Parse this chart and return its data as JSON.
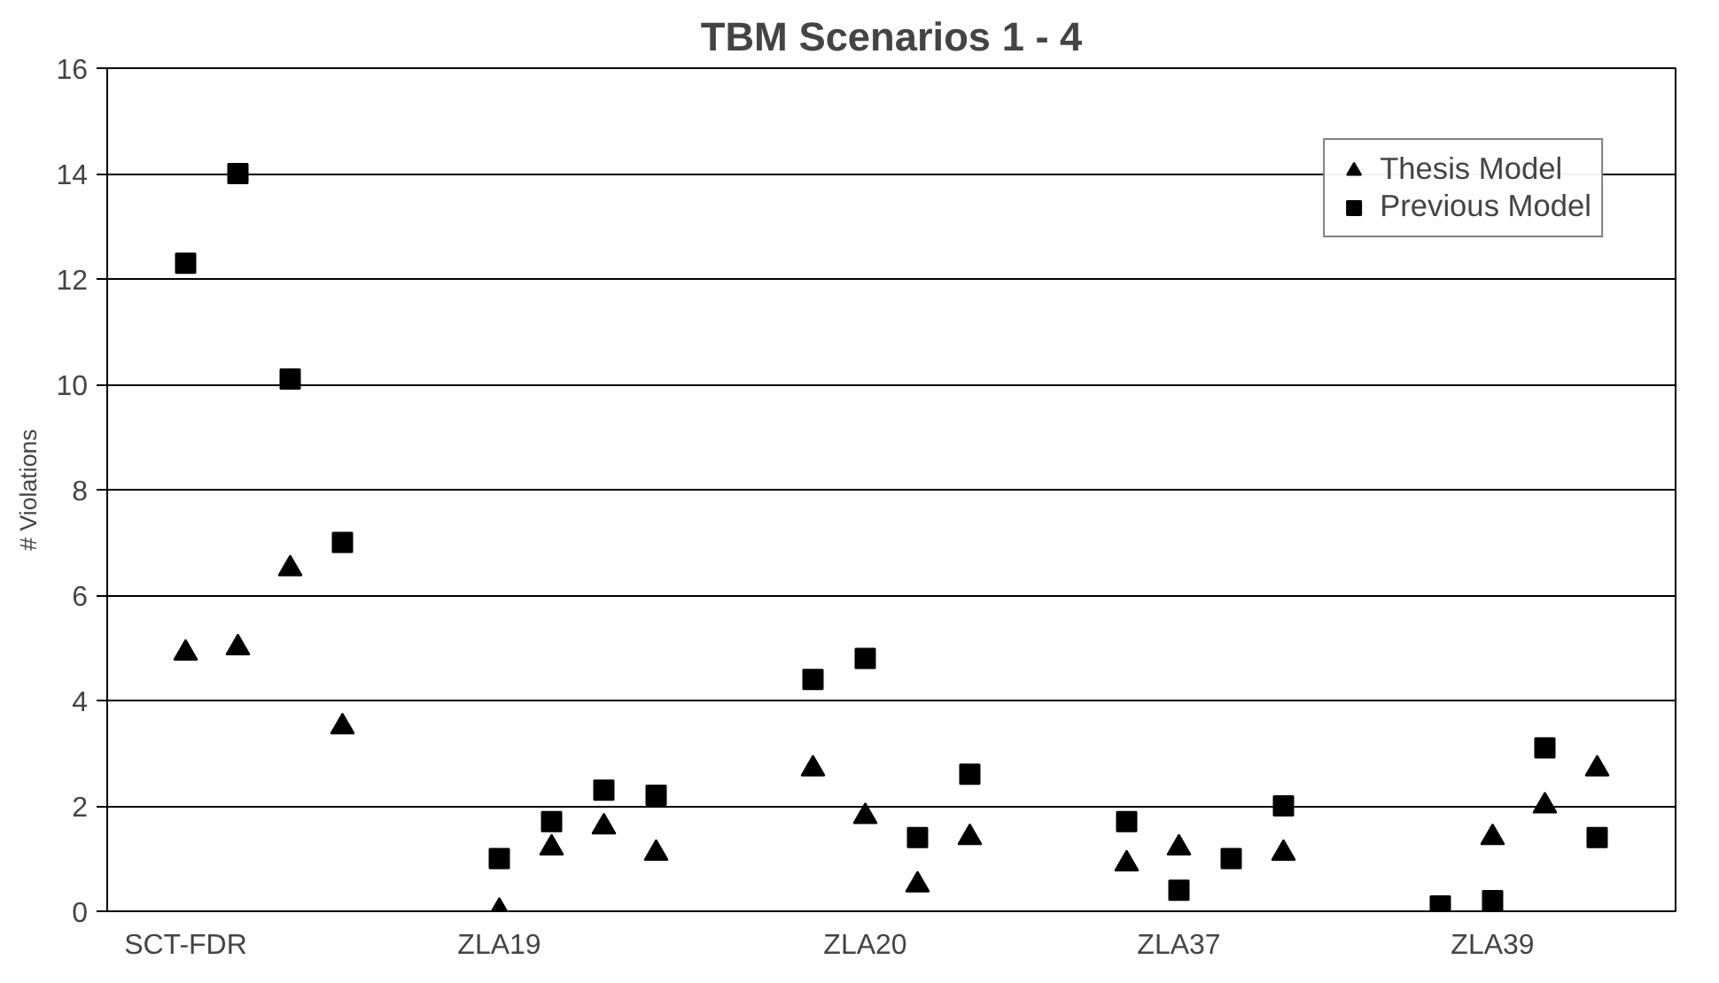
{
  "chart_data": {
    "type": "scatter",
    "title": "TBM Scenarios 1 - 4",
    "ylabel": "# Violations",
    "categories": [
      null,
      "SCT-FDR",
      null,
      null,
      null,
      null,
      null,
      "ZLA19",
      null,
      null,
      null,
      null,
      null,
      null,
      "ZLA20",
      null,
      null,
      null,
      null,
      null,
      "ZLA37",
      null,
      null,
      null,
      null,
      null,
      "ZLA39",
      null,
      null,
      null
    ],
    "ylim": [
      0,
      16
    ],
    "yticks": [
      0,
      2,
      4,
      6,
      8,
      10,
      12,
      14,
      16
    ],
    "grid": "y",
    "legend": "top right",
    "series": [
      {
        "name": "Thesis Model",
        "color": "#000000",
        "marker": "triangle",
        "values": [
          null,
          4.9,
          5.0,
          6.5,
          3.5,
          null,
          null,
          0.0,
          1.2,
          1.6,
          1.1,
          null,
          null,
          2.7,
          1.8,
          0.5,
          1.4,
          null,
          null,
          0.9,
          1.2,
          null,
          1.1,
          null,
          null,
          null,
          1.4,
          2.0,
          2.7,
          null
        ]
      },
      {
        "name": "Previous Model",
        "color": "#000000",
        "marker": "square",
        "values": [
          null,
          12.3,
          14.0,
          10.1,
          7.0,
          null,
          null,
          1.0,
          1.7,
          2.3,
          2.2,
          null,
          null,
          4.4,
          4.8,
          1.4,
          2.6,
          null,
          null,
          1.7,
          0.4,
          1.0,
          2.0,
          null,
          null,
          0.1,
          0.2,
          3.1,
          1.4,
          null
        ]
      }
    ]
  }
}
